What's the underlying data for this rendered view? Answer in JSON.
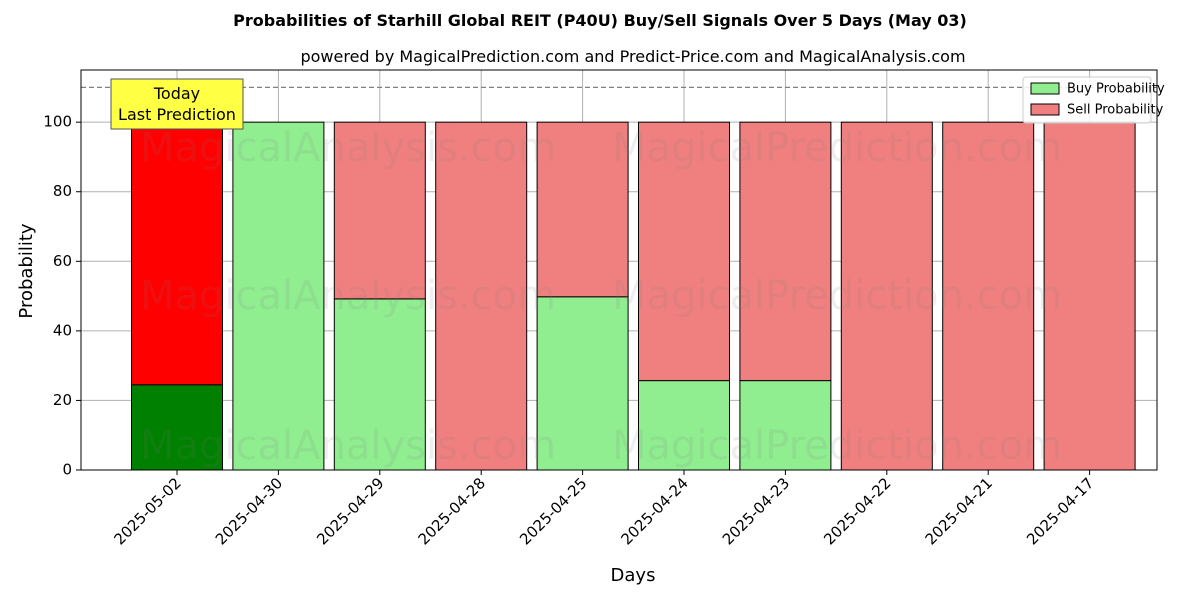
{
  "chart_data": {
    "type": "bar",
    "title": "Probabilities of Starhill Global REIT (P40U) Buy/Sell Signals Over 5 Days (May 03)",
    "subtitle": "powered by MagicalPrediction.com and Predict-Price.com and MagicalAnalysis.com",
    "xlabel": "Days",
    "ylabel": "Probability",
    "ylim": [
      0,
      115
    ],
    "yticks": [
      0,
      20,
      40,
      60,
      80,
      100
    ],
    "grid": true,
    "stacked": true,
    "legend_position": "top-right",
    "categories": [
      "2025-05-02",
      "2025-04-30",
      "2025-04-29",
      "2025-04-28",
      "2025-04-25",
      "2025-04-24",
      "2025-04-23",
      "2025-04-22",
      "2025-04-21",
      "2025-04-17"
    ],
    "series": [
      {
        "name": "Buy Probability",
        "values": [
          24.5,
          100,
          49.2,
          0,
          49.8,
          25.7,
          25.7,
          0,
          0,
          0
        ]
      },
      {
        "name": "Sell Probability",
        "values": [
          75.5,
          0,
          50.8,
          100,
          50.2,
          74.3,
          74.3,
          100,
          100,
          100
        ]
      }
    ],
    "colors": {
      "buy": "#90ee90",
      "sell": "#f08080",
      "buy_today": "#008000",
      "sell_today": "#ff0000",
      "annotation_bg": "#ffff44"
    },
    "reference_line": 110,
    "annotation": {
      "lines": [
        "Today",
        "Last Prediction"
      ],
      "category": "2025-05-02"
    },
    "watermarks": [
      "MagicalAnalysis.com",
      "MagicalPrediction.com"
    ]
  }
}
